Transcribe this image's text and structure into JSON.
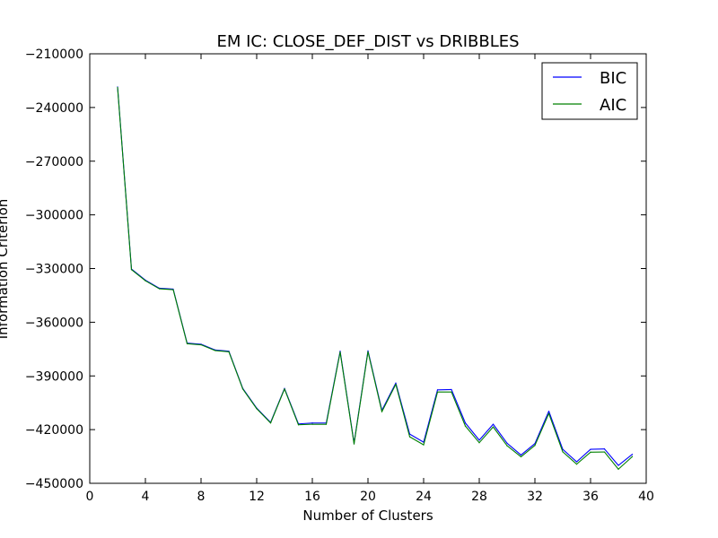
{
  "chart_data": {
    "type": "line",
    "title": "EM IC: CLOSE_DEF_DIST vs DRIBBLES",
    "xlabel": "Number of Clusters",
    "ylabel": "Information Criterion",
    "xlim": [
      0,
      40
    ],
    "ylim": [
      -450000,
      -210000
    ],
    "xticks": [
      0,
      4,
      8,
      12,
      16,
      20,
      24,
      28,
      32,
      36,
      40
    ],
    "yticks": [
      -210000,
      -240000,
      -270000,
      -300000,
      -330000,
      -360000,
      -390000,
      -420000,
      -450000
    ],
    "ytick_labels": [
      "−210000",
      "−240000",
      "−270000",
      "−300000",
      "−330000",
      "−360000",
      "−390000",
      "−420000",
      "−450000"
    ],
    "grid": false,
    "legend_position": "top-right",
    "x": [
      2,
      3,
      4,
      5,
      6,
      7,
      8,
      9,
      10,
      11,
      12,
      13,
      14,
      15,
      16,
      17,
      18,
      19,
      20,
      21,
      22,
      23,
      24,
      25,
      26,
      27,
      28,
      29,
      30,
      31,
      32,
      33,
      34,
      35,
      36,
      37,
      38,
      39
    ],
    "series": [
      {
        "name": "BIC",
        "color": "#0000ff",
        "values": [
          -228500,
          -330300,
          -336500,
          -341000,
          -341500,
          -371700,
          -372300,
          -375500,
          -376200,
          -397000,
          -408000,
          -416000,
          -397000,
          -416800,
          -416300,
          -416300,
          -376200,
          -427500,
          -376000,
          -409200,
          -394000,
          -422500,
          -427000,
          -397800,
          -397600,
          -416300,
          -425900,
          -417000,
          -427600,
          -434200,
          -427800,
          -409700,
          -431000,
          -438000,
          -431000,
          -430800,
          -440000,
          -433800
        ]
      },
      {
        "name": "AIC",
        "color": "#008000",
        "values": [
          -228800,
          -330600,
          -336800,
          -341300,
          -341800,
          -372000,
          -372600,
          -375800,
          -376500,
          -397300,
          -408300,
          -416300,
          -397300,
          -417300,
          -417000,
          -417000,
          -376700,
          -428000,
          -376500,
          -410000,
          -394700,
          -424000,
          -428500,
          -399000,
          -399000,
          -418000,
          -427300,
          -418500,
          -429000,
          -435200,
          -428800,
          -411000,
          -432400,
          -439300,
          -432600,
          -432500,
          -442100,
          -435100
        ]
      }
    ]
  }
}
